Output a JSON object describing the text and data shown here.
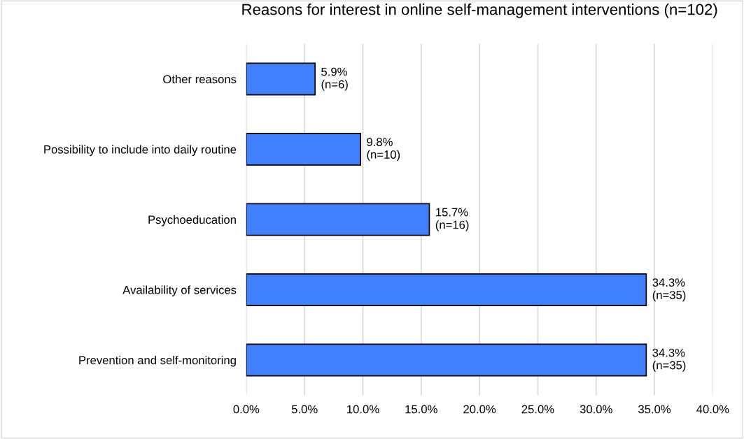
{
  "chart_data": {
    "type": "bar",
    "orientation": "horizontal",
    "title": "Reasons for interest in online self-management interventions (n=102)",
    "categories": [
      "Other reasons",
      "Possibility to include into daily routine",
      "Psychoeducation",
      "Availability of services",
      "Prevention and self-monitoring"
    ],
    "values": [
      5.9,
      9.8,
      15.7,
      34.3,
      34.3
    ],
    "value_labels": [
      "5.9%\n(n=6)",
      "9.8%\n(n=10)",
      "15.7%\n(n=16)",
      "34.3%\n(n=35)",
      "34.3%\n(n=35)"
    ],
    "color": "#4080ff",
    "xlim": [
      0,
      40
    ],
    "xticks": [
      {
        "value": 0,
        "label": "0.0%"
      },
      {
        "value": 5,
        "label": "5.0%"
      },
      {
        "value": 10,
        "label": "10.0%"
      },
      {
        "value": 15,
        "label": "15.0%"
      },
      {
        "value": 20,
        "label": "20.0%"
      },
      {
        "value": 25,
        "label": "25.0%"
      },
      {
        "value": 30,
        "label": "30.0%"
      },
      {
        "value": 35,
        "label": "35.0%"
      },
      {
        "value": 40,
        "label": "40.0%"
      }
    ],
    "grid": "x",
    "legend": false
  }
}
